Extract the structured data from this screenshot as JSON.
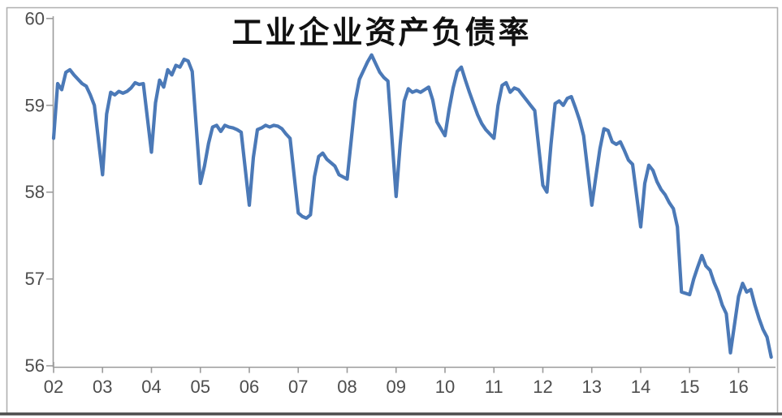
{
  "chart_data": {
    "type": "line",
    "title": "工业企业资产负债率",
    "x_axis": {
      "tick_labels": [
        "02",
        "03",
        "04",
        "05",
        "06",
        "07",
        "08",
        "09",
        "10",
        "11",
        "12",
        "13",
        "14",
        "15",
        "16"
      ],
      "note": "years 2002-2016, monthly points Feb-Dec each year (2016 through Oct)"
    },
    "y_axis": {
      "tick_labels": [
        "60",
        "59",
        "58",
        "57",
        "56"
      ],
      "min": 56,
      "max": 60
    },
    "grid": "off",
    "legend": "none",
    "series": [
      {
        "name": "工业企业资产负债率",
        "frequency": "monthly (Feb-Dec)",
        "years": [
          {
            "year": 2002,
            "values": [
              58.62,
              59.25,
              59.18,
              59.38,
              59.41,
              59.35,
              59.3,
              59.25,
              59.22,
              59.12,
              59.0
            ]
          },
          {
            "year": 2003,
            "values": [
              58.2,
              58.9,
              59.15,
              59.12,
              59.16,
              59.14,
              59.16,
              59.2,
              59.26,
              59.24,
              59.25
            ]
          },
          {
            "year": 2004,
            "values": [
              58.46,
              59.03,
              59.29,
              59.21,
              59.41,
              59.35,
              59.46,
              59.44,
              59.53,
              59.51,
              59.39
            ]
          },
          {
            "year": 2005,
            "values": [
              58.1,
              58.3,
              58.56,
              58.75,
              58.77,
              58.7,
              58.77,
              58.75,
              58.74,
              58.72,
              58.69
            ]
          },
          {
            "year": 2006,
            "values": [
              57.85,
              58.4,
              58.72,
              58.74,
              58.77,
              58.75,
              58.77,
              58.76,
              58.73,
              58.67,
              58.62
            ]
          },
          {
            "year": 2007,
            "values": [
              57.76,
              57.72,
              57.7,
              57.74,
              58.18,
              58.41,
              58.45,
              58.38,
              58.34,
              58.3,
              58.2
            ]
          },
          {
            "year": 2008,
            "values": [
              58.15,
              58.6,
              59.05,
              59.3,
              59.4,
              59.5,
              59.58,
              59.48,
              59.38,
              59.32,
              59.28
            ]
          },
          {
            "year": 2009,
            "values": [
              57.95,
              58.55,
              59.05,
              59.19,
              59.15,
              59.17,
              59.15,
              59.18,
              59.21,
              59.06,
              58.81
            ]
          },
          {
            "year": 2010,
            "values": [
              58.65,
              58.95,
              59.2,
              59.39,
              59.44,
              59.29,
              59.15,
              59.02,
              58.89,
              58.79,
              58.72
            ]
          },
          {
            "year": 2011,
            "values": [
              58.62,
              59.0,
              59.23,
              59.26,
              59.15,
              59.2,
              59.18,
              59.12,
              59.06,
              59.0,
              58.94
            ]
          },
          {
            "year": 2012,
            "values": [
              58.08,
              58.0,
              58.55,
              59.02,
              59.05,
              59.0,
              59.08,
              59.1,
              58.97,
              58.83,
              58.65
            ]
          },
          {
            "year": 2013,
            "values": [
              57.85,
              58.18,
              58.5,
              58.73,
              58.71,
              58.58,
              58.55,
              58.58,
              58.48,
              58.37,
              58.32
            ]
          },
          {
            "year": 2014,
            "values": [
              57.6,
              58.1,
              58.31,
              58.25,
              58.12,
              58.03,
              57.97,
              57.88,
              57.81,
              57.6,
              56.85
            ]
          },
          {
            "year": 2015,
            "values": [
              56.82,
              57.0,
              57.14,
              57.27,
              57.15,
              57.1,
              56.96,
              56.85,
              56.7,
              56.6,
              56.15
            ]
          },
          {
            "year": 2016,
            "values": [
              56.8,
              56.95,
              56.85,
              56.88,
              56.7,
              56.55,
              56.42,
              56.33,
              56.1
            ]
          }
        ]
      }
    ],
    "colors": {
      "line": "#4b79b7",
      "axis": "#9b9b9b",
      "tick_label": "#4d4d4d",
      "title": "#111111",
      "frame_light": "#b0b0b0",
      "frame_bottom": "#4d4d4d",
      "background": "#ffffff"
    }
  }
}
